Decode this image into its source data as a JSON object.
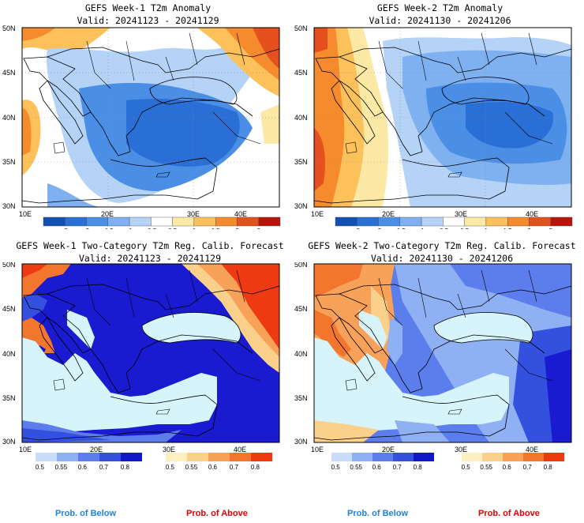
{
  "panels": [
    {
      "id": "p1",
      "title_line1": "GEFS Week-1 T2m Anomaly",
      "title_line2": "Valid: 20241123 - 20241129"
    },
    {
      "id": "p2",
      "title_line1": "GEFS Week-2 T2m Anomaly",
      "title_line2": "Valid: 20241130 - 20241206"
    },
    {
      "id": "p3",
      "title_line1": "GEFS Week-1 Two-Category T2m Reg. Calib. Forecast",
      "title_line2": "Valid: 20241123 - 20241129"
    },
    {
      "id": "p4",
      "title_line1": "GEFS Week-2 Two-Category T2m Reg. Calib. Forecast",
      "title_line2": "Valid: 20241130 - 20241206"
    }
  ],
  "axes": {
    "lat_labels": [
      "50N",
      "45N",
      "40N",
      "35N",
      "30N"
    ],
    "lon_labels": [
      "10E",
      "20E",
      "30E",
      "40E"
    ]
  },
  "anomaly_colorbar": {
    "labels": [
      "-3",
      "-2",
      "-1.5",
      "-1",
      "-0.5",
      "0.5",
      "1",
      "1.5",
      "2",
      "3"
    ],
    "colors": [
      "#1450b4",
      "#2a6fd6",
      "#4a8ee6",
      "#7fb0ef",
      "#b4d3f7",
      "#ffffff",
      "#fde9a6",
      "#fcc15a",
      "#f58b2c",
      "#e5501f",
      "#b8140c"
    ]
  },
  "prob_colorbar": {
    "labels": [
      "0.5",
      "0.55",
      "0.6",
      "0.7",
      "0.8"
    ],
    "below_colors": [
      "#c9dcfa",
      "#8fb0f3",
      "#5b7eec",
      "#3450de",
      "#1018c8"
    ],
    "above_colors": [
      "#fdf0c0",
      "#fbd08a",
      "#f7a258",
      "#f3762e",
      "#ee3a13"
    ]
  },
  "legend": {
    "prob_below": "Prob. of Below",
    "prob_above": "Prob. of Above",
    "below_color": "#1e80e6",
    "above_color": "#e60000"
  },
  "colors": {
    "sea": "#d8f4fb",
    "deep_blue": "#1a1ad0"
  }
}
